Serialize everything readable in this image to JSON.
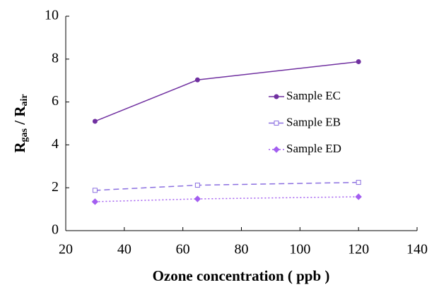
{
  "chart_data": {
    "type": "line",
    "xlabel": "Ozone concentration ( ppb )",
    "ylabel": [
      "R",
      "gas",
      " / R",
      "air"
    ],
    "x": [
      30,
      65,
      120
    ],
    "series": [
      {
        "name": "Sample EC",
        "color": "#7030a0",
        "dash": "solid",
        "marker": "circle",
        "values": [
          5.1,
          7.03,
          7.88
        ]
      },
      {
        "name": "Sample EB",
        "color": "#8b6fe0",
        "dash": "dashed",
        "marker": "square",
        "values": [
          1.88,
          2.12,
          2.25
        ]
      },
      {
        "name": "Sample ED",
        "color": "#a35ef0",
        "dash": "dotted",
        "marker": "diamond",
        "values": [
          1.35,
          1.48,
          1.58
        ]
      }
    ],
    "xlim": [
      20,
      140
    ],
    "xticks": [
      20,
      40,
      60,
      80,
      100,
      120,
      140
    ],
    "ylim": [
      0,
      10
    ],
    "yticks": [
      0,
      2,
      4,
      6,
      8,
      10
    ]
  }
}
